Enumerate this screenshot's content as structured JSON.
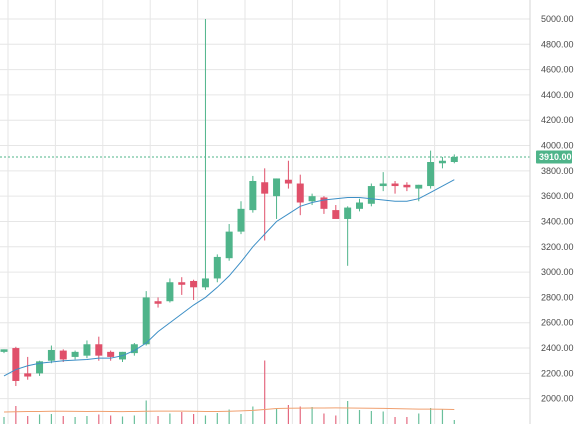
{
  "chart_data": {
    "type": "candlestick",
    "y_ticks": [
      "5000.00",
      "4800.00",
      "4600.00",
      "4400.00",
      "4200.00",
      "4000.00",
      "3800.00",
      "3600.00",
      "3400.00",
      "3200.00",
      "3000.00",
      "2800.00",
      "2600.00",
      "2400.00",
      "2200.00",
      "2000.00"
    ],
    "ylim": [
      1800,
      5150
    ],
    "grid": true,
    "last_price": 3910.0,
    "last_price_label": "3910.00",
    "colors": {
      "up": "#4fb48a",
      "down": "#e0506a",
      "ma_fast": "#3d8fc6",
      "ma_volume": "#f0a070",
      "grid": "#e6e6e6",
      "price_line": "#4fb48a"
    },
    "candles": [
      {
        "o": 2370,
        "h": 2390,
        "l": 2360,
        "c": 2390
      },
      {
        "o": 2400,
        "h": 2410,
        "l": 2100,
        "c": 2140
      },
      {
        "o": 2200,
        "h": 2330,
        "l": 2150,
        "c": 2175
      },
      {
        "o": 2200,
        "h": 2300,
        "l": 2180,
        "c": 2295
      },
      {
        "o": 2300,
        "h": 2420,
        "l": 2280,
        "c": 2385
      },
      {
        "o": 2380,
        "h": 2390,
        "l": 2290,
        "c": 2310
      },
      {
        "o": 2330,
        "h": 2380,
        "l": 2310,
        "c": 2370
      },
      {
        "o": 2340,
        "h": 2460,
        "l": 2320,
        "c": 2430
      },
      {
        "o": 2430,
        "h": 2490,
        "l": 2300,
        "c": 2340
      },
      {
        "o": 2370,
        "h": 2380,
        "l": 2300,
        "c": 2330
      },
      {
        "o": 2310,
        "h": 2370,
        "l": 2290,
        "c": 2370
      },
      {
        "o": 2360,
        "h": 2440,
        "l": 2340,
        "c": 2430
      },
      {
        "o": 2430,
        "h": 2850,
        "l": 2420,
        "c": 2800
      },
      {
        "o": 2770,
        "h": 2800,
        "l": 2720,
        "c": 2750
      },
      {
        "o": 2770,
        "h": 2950,
        "l": 2760,
        "c": 2920
      },
      {
        "o": 2920,
        "h": 2960,
        "l": 2820,
        "c": 2900
      },
      {
        "o": 2930,
        "h": 2940,
        "l": 2780,
        "c": 2880
      },
      {
        "o": 2880,
        "h": 5000,
        "l": 2860,
        "c": 2950
      },
      {
        "o": 2950,
        "h": 3140,
        "l": 2920,
        "c": 3120
      },
      {
        "o": 3110,
        "h": 3380,
        "l": 3090,
        "c": 3320
      },
      {
        "o": 3320,
        "h": 3560,
        "l": 3300,
        "c": 3500
      },
      {
        "o": 3490,
        "h": 3760,
        "l": 3470,
        "c": 3720
      },
      {
        "o": 3710,
        "h": 3820,
        "l": 3250,
        "c": 3620
      },
      {
        "o": 3600,
        "h": 3740,
        "l": 3420,
        "c": 3740
      },
      {
        "o": 3730,
        "h": 3880,
        "l": 3660,
        "c": 3700
      },
      {
        "o": 3700,
        "h": 3770,
        "l": 3450,
        "c": 3550
      },
      {
        "o": 3560,
        "h": 3620,
        "l": 3530,
        "c": 3600
      },
      {
        "o": 3590,
        "h": 3600,
        "l": 3460,
        "c": 3500
      },
      {
        "o": 3490,
        "h": 3530,
        "l": 3430,
        "c": 3420
      },
      {
        "o": 3420,
        "h": 3520,
        "l": 3050,
        "c": 3510
      },
      {
        "o": 3500,
        "h": 3580,
        "l": 3480,
        "c": 3550
      },
      {
        "o": 3540,
        "h": 3700,
        "l": 3520,
        "c": 3680
      },
      {
        "o": 3680,
        "h": 3790,
        "l": 3640,
        "c": 3700
      },
      {
        "o": 3700,
        "h": 3720,
        "l": 3620,
        "c": 3680
      },
      {
        "o": 3690,
        "h": 3710,
        "l": 3640,
        "c": 3670
      },
      {
        "o": 3660,
        "h": 3690,
        "l": 3560,
        "c": 3690
      },
      {
        "o": 3680,
        "h": 3960,
        "l": 3660,
        "c": 3870
      },
      {
        "o": 3860,
        "h": 3910,
        "l": 3820,
        "c": 3880
      },
      {
        "o": 3870,
        "h": 3930,
        "l": 3860,
        "c": 3910
      }
    ],
    "ma_fast": [
      2180,
      2230,
      2260,
      2280,
      2290,
      2300,
      2305,
      2310,
      2320,
      2320,
      2340,
      2380,
      2440,
      2530,
      2600,
      2670,
      2740,
      2800,
      2880,
      2970,
      3080,
      3200,
      3300,
      3400,
      3460,
      3520,
      3550,
      3570,
      3580,
      3590,
      3590,
      3580,
      3570,
      3560,
      3560,
      3580,
      3630,
      3680,
      3730
    ],
    "volume": [
      140,
      360,
      160,
      190,
      200,
      160,
      140,
      160,
      190,
      170,
      150,
      170,
      470,
      160,
      210,
      240,
      200,
      170,
      220,
      290,
      200,
      350,
      1270,
      300,
      380,
      350,
      340,
      210,
      170,
      460,
      280,
      260,
      250,
      140,
      140,
      210,
      320,
      300,
      80
    ],
    "volume_ma": [
      240,
      245,
      250,
      250,
      255,
      255,
      252,
      250,
      252,
      250,
      248,
      250,
      255,
      258,
      258,
      258,
      255,
      250,
      250,
      255,
      262,
      272,
      290,
      310,
      315,
      318,
      320,
      320,
      322,
      320,
      318,
      315,
      312,
      308,
      302,
      298,
      298,
      296,
      290
    ],
    "volume_max": 2000
  }
}
